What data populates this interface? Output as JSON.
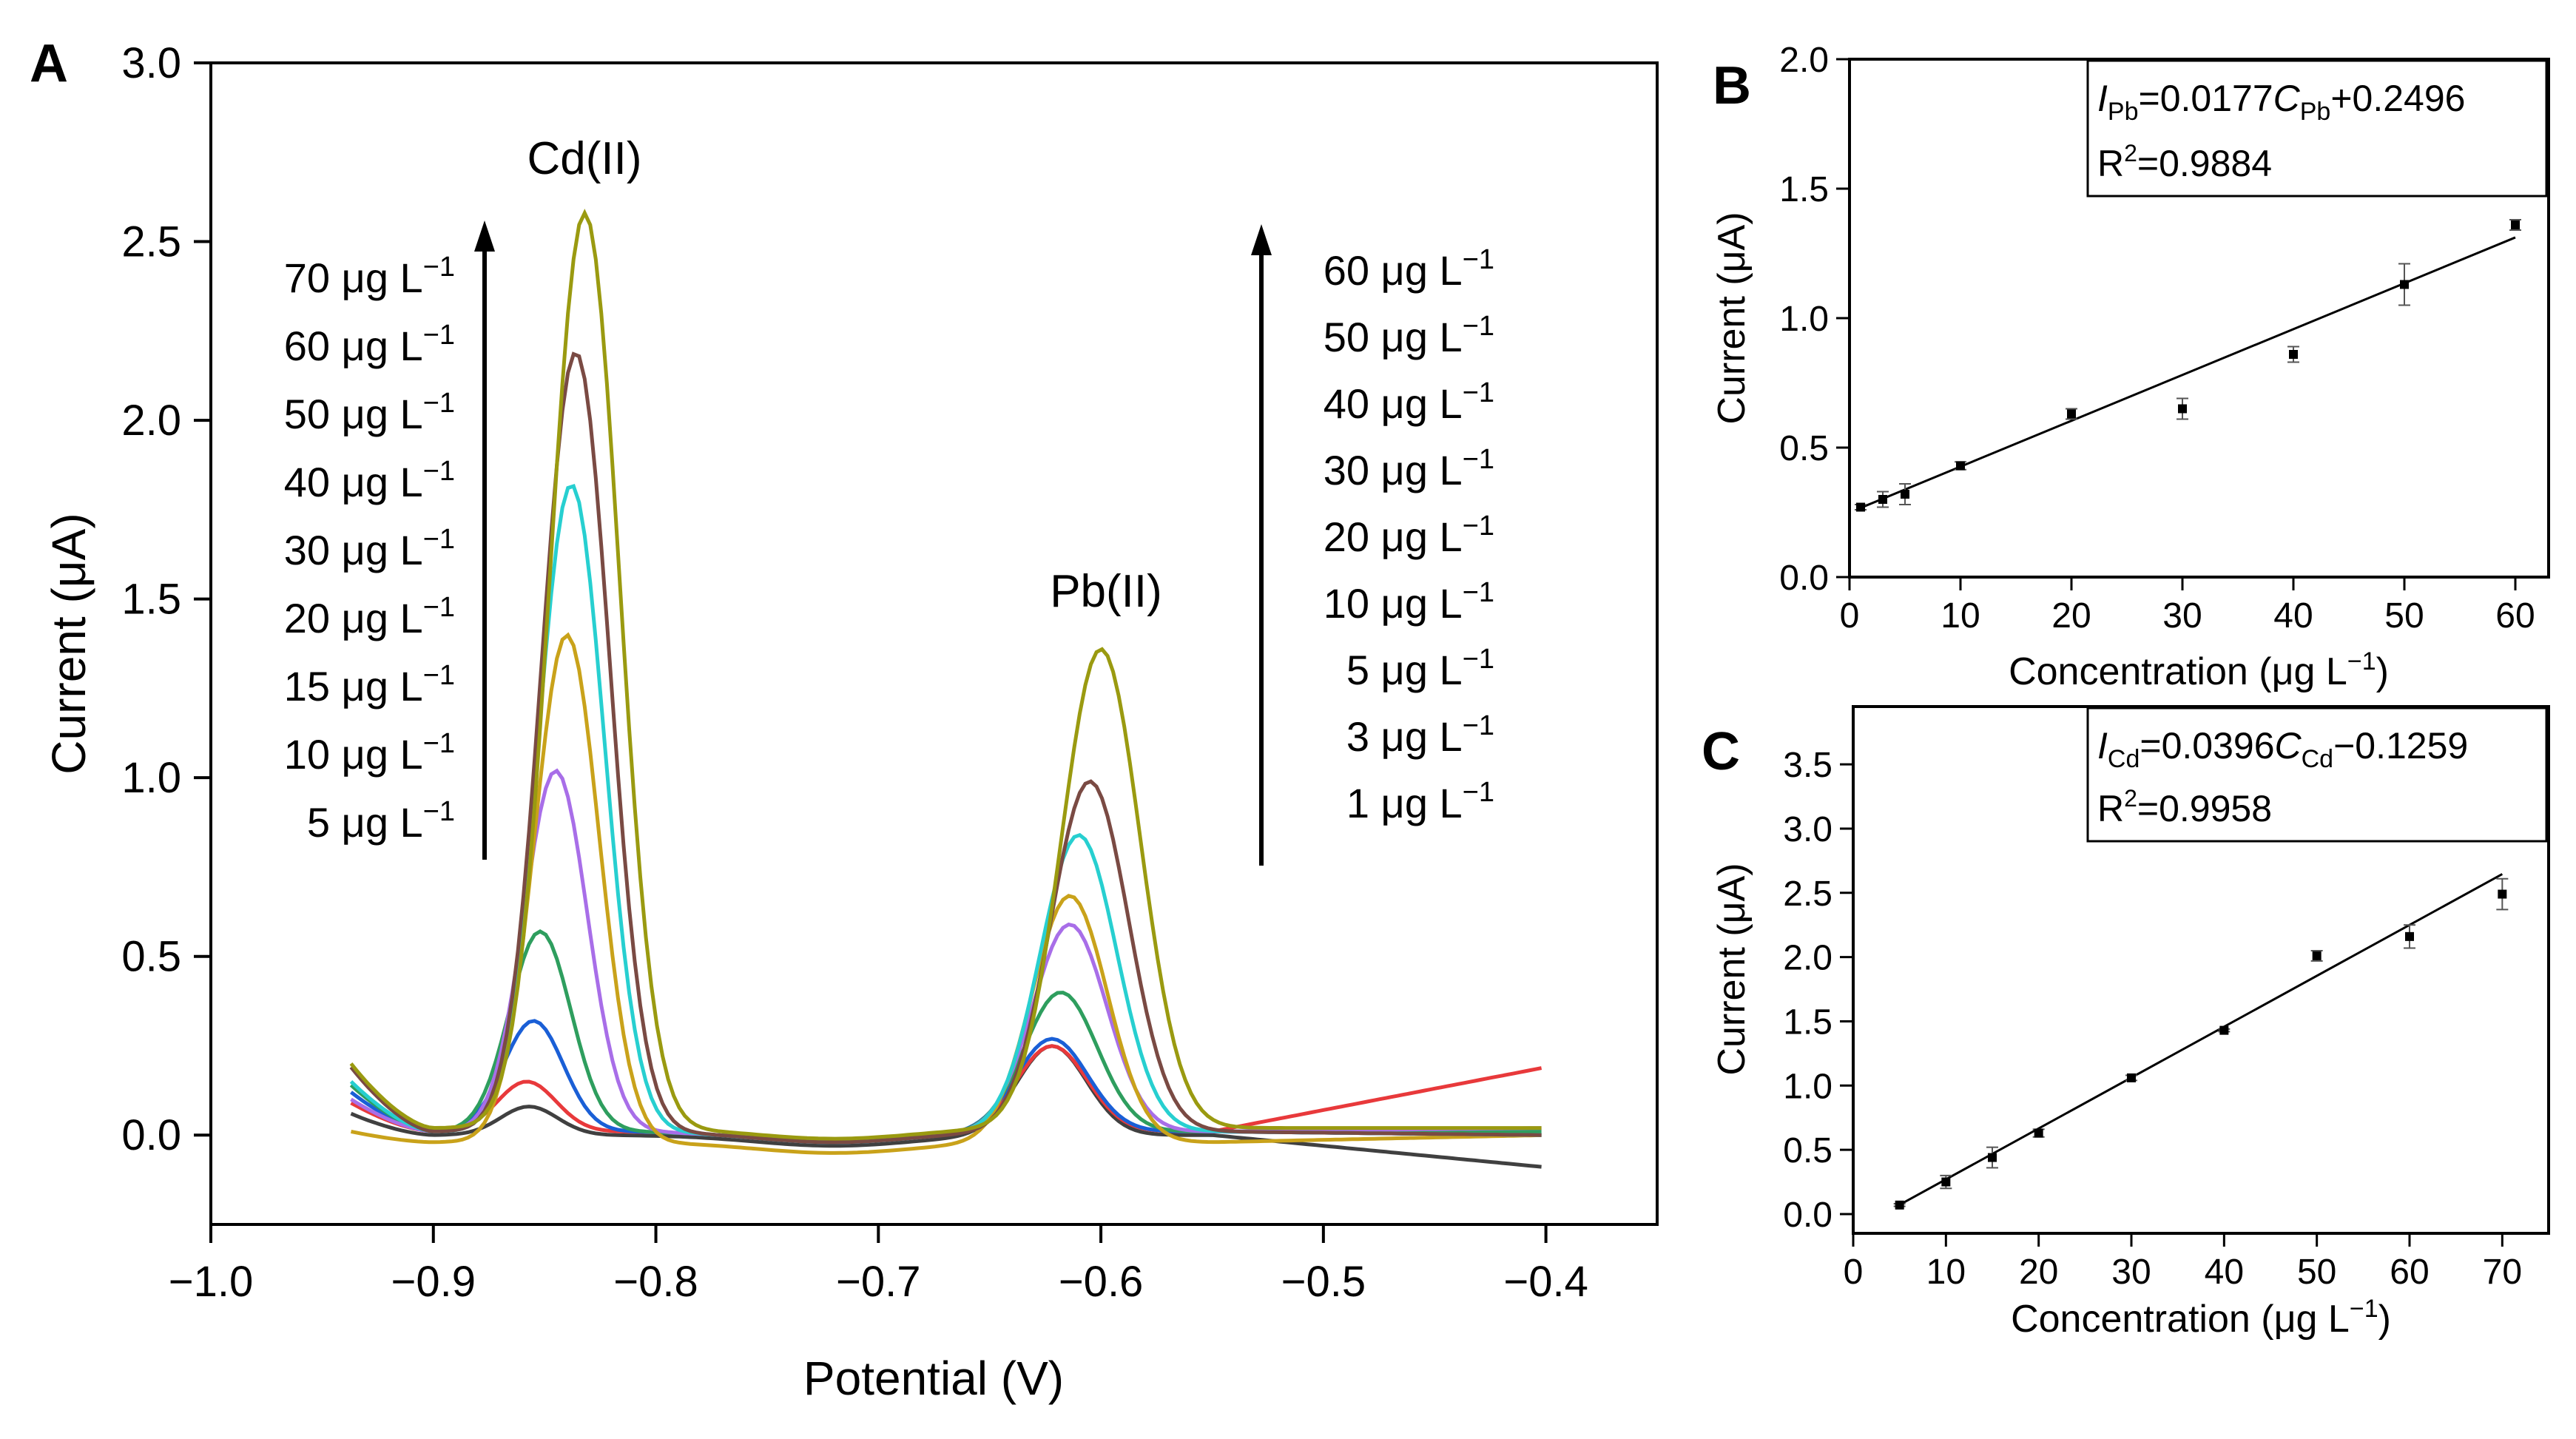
{
  "chart_data": [
    {
      "id": "A",
      "type": "line",
      "panel_label": "A",
      "xlabel": "Potential (V)",
      "ylabel": "Current (μA)",
      "xlim": [
        -1.0,
        -0.35
      ],
      "ylim": [
        -0.25,
        3.0
      ],
      "xticks": [
        -1.0,
        -0.9,
        -0.8,
        -0.7,
        -0.6,
        -0.5,
        -0.4
      ],
      "xtick_labels": [
        "−1.0",
        "−0.9",
        "−0.8",
        "−0.7",
        "−0.6",
        "−0.5",
        "−0.4"
      ],
      "yticks": [
        0.0,
        0.5,
        1.0,
        1.5,
        2.0,
        2.5,
        3.0
      ],
      "ytick_labels": [
        "0.0",
        "0.5",
        "1.0",
        "1.5",
        "2.0",
        "2.5",
        "3.0"
      ],
      "annotations": {
        "cd_peak": "Cd(II)",
        "pb_peak": "Pb(II)",
        "cd_unit": "μg L",
        "cd_exp": "−1",
        "cd_conc": [
          "70",
          "60",
          "50",
          "40",
          "30",
          "20",
          "15",
          "10",
          "5"
        ],
        "pb_unit": "μg L",
        "pb_exp": "−1",
        "pb_conc": [
          "60",
          "50",
          "40",
          "30",
          "20",
          "10",
          "5",
          "3",
          "1"
        ]
      },
      "x_range": [
        -0.937,
        -0.4
      ],
      "series": [
        {
          "color": "#404040",
          "cd": [
            -0.857,
            0.08
          ],
          "pb": [
            -0.622,
            0.25
          ],
          "base": [
            0.06,
            0.0,
            -0.09
          ],
          "slope": 0.0
        },
        {
          "color": "#e8393b",
          "cd": [
            -0.858,
            0.15
          ],
          "pb": [
            -0.622,
            0.25
          ],
          "base": [
            0.09,
            0.01,
            0.19
          ],
          "slope": 0.0
        },
        {
          "color": "#1a5fd6",
          "cd": [
            -0.855,
            0.32
          ],
          "pb": [
            -0.622,
            0.27
          ],
          "base": [
            0.12,
            0.01,
            0.0
          ],
          "slope": 0.0
        },
        {
          "color": "#2e9e5e",
          "cd": [
            -0.852,
            0.57
          ],
          "pb": [
            -0.618,
            0.4
          ],
          "base": [
            0.14,
            0.01,
            0.01
          ],
          "slope": 0.0
        },
        {
          "color": "#a86ee8",
          "cd": [
            -0.845,
            1.02
          ],
          "pb": [
            -0.614,
            0.59
          ],
          "base": [
            0.1,
            0.01,
            0.02
          ],
          "slope": 0.0
        },
        {
          "color": "#c9a21a",
          "cd": [
            -0.84,
            1.4
          ],
          "pb": [
            -0.614,
            0.67
          ],
          "base": [
            0.01,
            -0.02,
            0.0
          ],
          "slope": 0.0
        },
        {
          "color": "#27cfd0",
          "cd": [
            -0.838,
            1.82
          ],
          "pb": [
            -0.61,
            0.84
          ],
          "base": [
            0.15,
            0.01,
            0.0
          ],
          "slope": 0.0
        },
        {
          "color": "#7a4a43",
          "cd": [
            -0.836,
            2.19
          ],
          "pb": [
            -0.605,
            0.99
          ],
          "base": [
            0.19,
            0.01,
            0.0
          ],
          "slope": 0.0
        },
        {
          "color": "#9a9a10",
          "cd": [
            -0.832,
            2.58
          ],
          "pb": [
            -0.6,
            1.36
          ],
          "base": [
            0.2,
            0.02,
            0.02
          ],
          "slope": 0.0
        }
      ]
    },
    {
      "id": "B",
      "type": "scatter",
      "panel_label": "B",
      "xlabel": "Concentration (μg L",
      "xlabel_exp": "−1",
      "xlabel_close": ")",
      "ylabel": "Current (μA)",
      "xlim": [
        0,
        63
      ],
      "ylim": [
        0,
        2.0
      ],
      "xticks": [
        0,
        10,
        20,
        30,
        40,
        50,
        60
      ],
      "xtick_labels": [
        "0",
        "10",
        "20",
        "30",
        "40",
        "50",
        "60"
      ],
      "yticks": [
        0.0,
        0.5,
        1.0,
        1.5,
        2.0
      ],
      "ytick_labels": [
        "0.0",
        "0.5",
        "1.0",
        "1.5",
        "2.0"
      ],
      "x": [
        1,
        3,
        5,
        10,
        20,
        30,
        40,
        50,
        60
      ],
      "y": [
        0.27,
        0.3,
        0.32,
        0.43,
        0.63,
        0.65,
        0.86,
        1.13,
        1.36
      ],
      "err": [
        0.01,
        0.03,
        0.04,
        0.015,
        0.02,
        0.04,
        0.03,
        0.08,
        0.02
      ],
      "fit": {
        "slope": 0.0177,
        "intercept": 0.2496,
        "x_range": [
          1,
          60
        ]
      },
      "equation": {
        "i": "I",
        "i_sub": "Pb",
        "eq": "=0.0177",
        "c": "C",
        "c_sub": "Pb",
        "tail": "+0.2496"
      },
      "r2": {
        "r": "R",
        "exp": "2",
        "value": "=0.9884"
      }
    },
    {
      "id": "C",
      "type": "scatter",
      "panel_label": "C",
      "xlabel": "Concentration (μg L",
      "xlabel_exp": "−1",
      "xlabel_close": ")",
      "ylabel": "Current (μA)",
      "xlim": [
        0,
        75
      ],
      "ylim": [
        -0.15,
        3.95
      ],
      "xticks": [
        0,
        10,
        20,
        30,
        40,
        50,
        60,
        70
      ],
      "xtick_labels": [
        "0",
        "10",
        "20",
        "30",
        "40",
        "50",
        "60",
        "70"
      ],
      "yticks": [
        0.0,
        0.5,
        1.0,
        1.5,
        2.0,
        2.5,
        3.0,
        3.5
      ],
      "ytick_labels": [
        "0.0",
        "0.5",
        "1.0",
        "1.5",
        "2.0",
        "2.5",
        "3.0",
        "3.5"
      ],
      "x": [
        5,
        10,
        15,
        20,
        30,
        40,
        50,
        60,
        70
      ],
      "y": [
        0.07,
        0.25,
        0.44,
        0.63,
        1.06,
        1.43,
        2.01,
        2.16,
        2.49
      ],
      "err": [
        0.01,
        0.05,
        0.08,
        0.03,
        0.02,
        0.01,
        0.04,
        0.09,
        0.12
      ],
      "fit": {
        "slope": 0.0396,
        "intercept": -0.1259,
        "x_range": [
          5,
          70
        ]
      },
      "equation": {
        "i": "I",
        "i_sub": "Cd",
        "eq": "=0.0396",
        "c": "C",
        "c_sub": "Cd",
        "tail": "−0.1259"
      },
      "r2": {
        "r": "R",
        "exp": "2",
        "value": "=0.9958"
      }
    }
  ]
}
